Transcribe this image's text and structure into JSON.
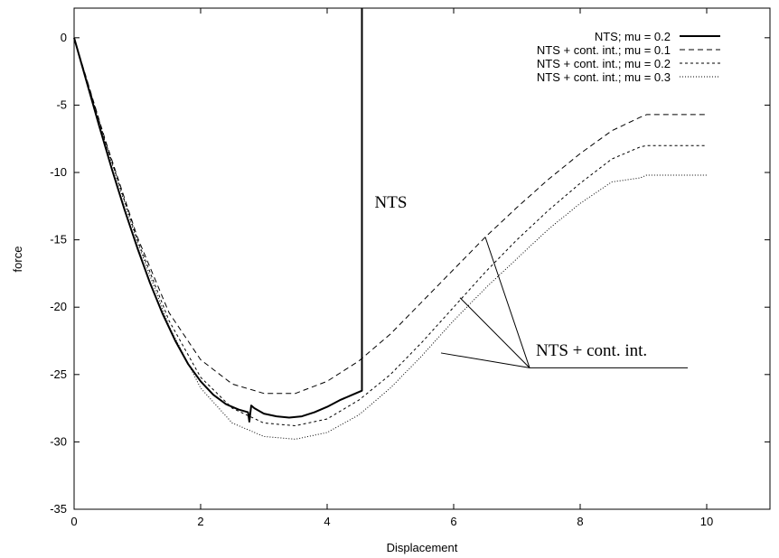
{
  "chart_data": {
    "type": "line",
    "xlabel": "Displacement",
    "ylabel": "force",
    "xlim": [
      0,
      11
    ],
    "ylim": [
      -35,
      2.2
    ],
    "xticks": [
      "0",
      "2",
      "4",
      "6",
      "8",
      "10"
    ],
    "yticks": [
      "0",
      "-5",
      "-10",
      "-15",
      "-20",
      "-25",
      "-30",
      "-35"
    ],
    "grid": false,
    "legend_position": "top-right",
    "series": [
      {
        "name": "NTS; mu = 0.2",
        "style": "solid",
        "x": [
          0,
          0.2,
          0.4,
          0.6,
          0.8,
          1.0,
          1.2,
          1.4,
          1.6,
          1.8,
          2.0,
          2.2,
          2.4,
          2.6,
          2.75,
          2.77,
          2.8,
          2.85,
          3.0,
          3.2,
          3.4,
          3.6,
          3.8,
          4.0,
          4.2,
          4.4,
          4.55,
          4.55
        ],
        "y": [
          0,
          -3.3,
          -6.6,
          -9.8,
          -12.8,
          -15.6,
          -18.2,
          -20.5,
          -22.5,
          -24.2,
          -25.5,
          -26.5,
          -27.2,
          -27.6,
          -27.8,
          -28.5,
          -27.3,
          -27.5,
          -27.9,
          -28.1,
          -28.2,
          -28.1,
          -27.8,
          -27.4,
          -26.9,
          -26.5,
          -26.2,
          2.2
        ]
      },
      {
        "name": "NTS + cont. int.; mu = 0.1",
        "style": "dashed",
        "x": [
          0,
          0.5,
          1.0,
          1.5,
          2.0,
          2.5,
          3.0,
          3.5,
          4.0,
          4.5,
          5.0,
          5.5,
          6.0,
          6.5,
          7.0,
          7.5,
          8.0,
          8.5,
          8.95,
          9.05,
          10.0
        ],
        "y": [
          0,
          -7.7,
          -14.8,
          -20.4,
          -23.9,
          -25.7,
          -26.4,
          -26.4,
          -25.5,
          -24.0,
          -22.0,
          -19.6,
          -17.2,
          -14.8,
          -12.6,
          -10.5,
          -8.6,
          -6.9,
          -5.9,
          -5.7,
          -5.7
        ]
      },
      {
        "name": "NTS + cont. int.; mu = 0.2",
        "style": "short-dashed",
        "x": [
          0,
          0.5,
          1.0,
          1.5,
          2.0,
          2.5,
          3.0,
          3.5,
          4.0,
          4.5,
          5.0,
          5.5,
          6.0,
          6.5,
          7.0,
          7.5,
          8.0,
          8.5,
          8.95,
          9.05,
          10.0
        ],
        "y": [
          0,
          -7.8,
          -15.0,
          -21.0,
          -25.2,
          -27.5,
          -28.6,
          -28.8,
          -28.3,
          -26.9,
          -25.0,
          -22.6,
          -20.0,
          -17.4,
          -15.0,
          -12.8,
          -10.8,
          -9.0,
          -8.1,
          -8.0,
          -8.0
        ]
      },
      {
        "name": "NTS + cont. int.; mu = 0.3",
        "style": "dotted",
        "x": [
          0,
          0.5,
          1.0,
          1.5,
          2.0,
          2.5,
          3.0,
          3.5,
          4.0,
          4.5,
          5.0,
          5.5,
          6.0,
          6.5,
          7.0,
          7.5,
          8.0,
          8.5,
          8.95,
          9.05,
          10.0
        ],
        "y": [
          0,
          -7.9,
          -15.2,
          -21.4,
          -26.0,
          -28.6,
          -29.6,
          -29.8,
          -29.3,
          -28.0,
          -26.0,
          -23.6,
          -21.0,
          -18.6,
          -16.4,
          -14.2,
          -12.3,
          -10.7,
          -10.4,
          -10.2,
          -10.2
        ]
      }
    ],
    "annotations": [
      {
        "text": "NTS",
        "x": 4.75,
        "y": -12.6
      },
      {
        "text": "NTS + cont. int.",
        "x": 7.3,
        "y": -23.6,
        "pointer_origin": [
          7.2,
          -24.5
        ],
        "pointer_line_end": [
          9.7,
          -24.5
        ],
        "pointer_targets": [
          [
            6.5,
            -14.8
          ],
          [
            6.1,
            -19.3
          ],
          [
            5.8,
            -23.4
          ]
        ]
      }
    ]
  }
}
